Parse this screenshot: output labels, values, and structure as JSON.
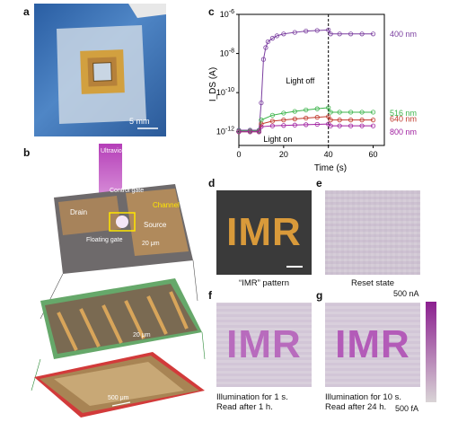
{
  "panels": {
    "a": {
      "letter": "a",
      "scale_bar": "5 mm"
    },
    "b": {
      "letter": "b",
      "uv_label": "Ultraviolet",
      "control_gate": "Control gate",
      "drain": "Drain",
      "channel": "Channel",
      "source": "Source",
      "floating_gate": "Floating gate",
      "scale_top": "20 μm",
      "scale_mid": "20 μm",
      "scale_bottom": "500 μm"
    },
    "c": {
      "letter": "c"
    },
    "d": {
      "letter": "d",
      "caption": "“IMR” pattern",
      "word": "IMR"
    },
    "e": {
      "letter": "e",
      "caption": "Reset state"
    },
    "f": {
      "letter": "f",
      "caption_1": "Illumination for 1 s.",
      "caption_2": "Read after 1 h.",
      "word": "IMR"
    },
    "g": {
      "letter": "g",
      "caption_1": "Illumination for 10 s.",
      "caption_2": "Read after 24 h.",
      "word": "IMR"
    },
    "colorbar": {
      "top": "500 nA",
      "bottom": "500 fA",
      "color_top": "#8b1f8f",
      "color_bottom": "#d9d4d6"
    }
  },
  "chart_data": {
    "type": "scatter",
    "ylabel": "I_DS (A)",
    "xlabel": "Time (s)",
    "x_ticks": [
      "0",
      "20",
      "40",
      "60"
    ],
    "y_ticks": [
      "10^-12",
      "10^-10",
      "10^-8",
      "10^-6"
    ],
    "xlim": [
      0,
      65
    ],
    "ylim_log10": [
      -12.7,
      -6
    ],
    "y_scale": "log",
    "annotations": {
      "light_on": "Light on",
      "light_off": "Light off"
    },
    "series": [
      {
        "name": "400 nm",
        "color": "#7b3fa0",
        "x": [
          0,
          5,
          9,
          10,
          11,
          12,
          13,
          15,
          17,
          20,
          25,
          30,
          35,
          40,
          41,
          45,
          50,
          55,
          60
        ],
        "y": [
          1.2e-12,
          1.2e-12,
          1.2e-12,
          3e-11,
          5e-09,
          2e-08,
          4e-08,
          6e-08,
          8e-08,
          1e-07,
          1.2e-07,
          1.4e-07,
          1.5e-07,
          1.6e-07,
          1e-07,
          1e-07,
          1e-07,
          1e-07,
          1e-07
        ]
      },
      {
        "name": "516 nm",
        "color": "#3cb44b",
        "x": [
          0,
          5,
          9,
          10,
          15,
          20,
          25,
          30,
          35,
          40,
          41,
          45,
          50,
          55,
          60
        ],
        "y": [
          1.1e-12,
          1.1e-12,
          1.1e-12,
          4e-12,
          7e-12,
          9e-12,
          1.1e-11,
          1.3e-11,
          1.5e-11,
          1.7e-11,
          1e-11,
          1e-11,
          1e-11,
          1e-11,
          1e-11
        ]
      },
      {
        "name": "640 nm",
        "color": "#c0392b",
        "x": [
          0,
          5,
          9,
          10,
          15,
          20,
          25,
          30,
          35,
          40,
          41,
          45,
          50,
          55,
          60
        ],
        "y": [
          1e-12,
          1e-12,
          1e-12,
          2.5e-12,
          3.5e-12,
          4e-12,
          4.5e-12,
          5e-12,
          5.5e-12,
          6e-12,
          4e-12,
          4e-12,
          4e-12,
          4e-12,
          4e-12
        ]
      },
      {
        "name": "800 nm",
        "color": "#a020a0",
        "x": [
          0,
          5,
          9,
          10,
          15,
          20,
          25,
          30,
          35,
          40,
          41,
          45,
          50,
          55,
          60
        ],
        "y": [
          1e-12,
          1e-12,
          1e-12,
          1.8e-12,
          2e-12,
          2.1e-12,
          2.2e-12,
          2.3e-12,
          2.4e-12,
          2.5e-12,
          2e-12,
          2e-12,
          2e-12,
          2e-12,
          2e-12
        ]
      }
    ]
  }
}
